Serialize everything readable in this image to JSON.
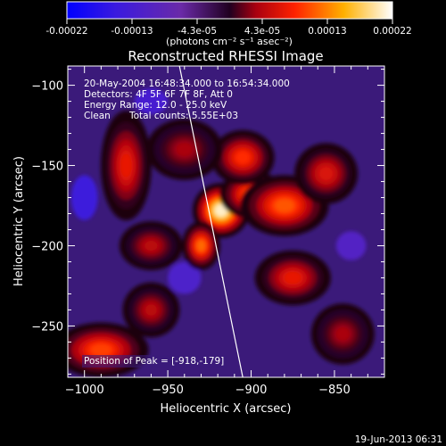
{
  "chart_data": {
    "type": "heatmap",
    "title": "Reconstructed RHESSI Image",
    "xlabel": "Heliocentric X (arcsec)",
    "ylabel": "Heliocentric Y (arcsec)",
    "xlim": [
      -1010,
      -820
    ],
    "ylim": [
      -282,
      -88
    ],
    "xticks": [
      -1000,
      -950,
      -900,
      -850
    ],
    "yticks": [
      -100,
      -150,
      -200,
      -250
    ],
    "colorbar": {
      "label": "(photons cm⁻² s⁻¹ asec⁻²)",
      "range": [
        -0.00022,
        0.00022
      ],
      "ticks": [
        "-0.00022",
        "-0.00013",
        "-4.3e-05",
        "4.3e-05",
        "0.00013",
        "0.00022"
      ],
      "colormap": "rainbow-blue-purple-red-yellow-white"
    },
    "info": {
      "time_range": "20-May-2004 16:48:34.000 to 16:54:34.000",
      "detectors": "Detectors: 4F 5F 6F 7F 8F, Att 0",
      "energy_range": "Energy Range: 12.0 - 25.0 keV",
      "algorithm": "Clean",
      "total_counts": "Total counts: 5.55E+03"
    },
    "peak": {
      "label": "Position of Peak = [-918,-179]",
      "x": -918,
      "y": -179
    },
    "limb_line": [
      [
        -943,
        -88
      ],
      [
        -905,
        -282
      ]
    ],
    "sources": [
      {
        "x": -918,
        "y": -178,
        "value": 0.00022,
        "sx": 9,
        "sy": 9
      },
      {
        "x": -930,
        "y": -200,
        "value": 0.00013,
        "sx": 6,
        "sy": 8
      },
      {
        "x": -900,
        "y": -168,
        "value": 0.00012,
        "sx": 10,
        "sy": 8
      },
      {
        "x": -880,
        "y": -175,
        "value": 0.00012,
        "sx": 14,
        "sy": 10
      },
      {
        "x": -905,
        "y": -145,
        "value": 0.0001,
        "sx": 10,
        "sy": 9
      },
      {
        "x": -855,
        "y": -155,
        "value": 7e-05,
        "sx": 10,
        "sy": 10
      },
      {
        "x": -875,
        "y": -220,
        "value": 8e-05,
        "sx": 12,
        "sy": 9
      },
      {
        "x": -975,
        "y": -150,
        "value": 8e-05,
        "sx": 8,
        "sy": 18
      },
      {
        "x": -990,
        "y": -265,
        "value": 0.00011,
        "sx": 15,
        "sy": 9
      },
      {
        "x": -960,
        "y": -200,
        "value": 5e-05,
        "sx": 10,
        "sy": 8
      },
      {
        "x": -940,
        "y": -140,
        "value": 4e-05,
        "sx": 12,
        "sy": 10
      },
      {
        "x": -845,
        "y": -255,
        "value": 4e-05,
        "sx": 10,
        "sy": 10
      },
      {
        "x": -960,
        "y": -240,
        "value": 5e-05,
        "sx": 9,
        "sy": 9
      }
    ],
    "grid": false,
    "legend": "none"
  },
  "footer": {
    "timestamp": "19-Jun-2013 06:31"
  }
}
